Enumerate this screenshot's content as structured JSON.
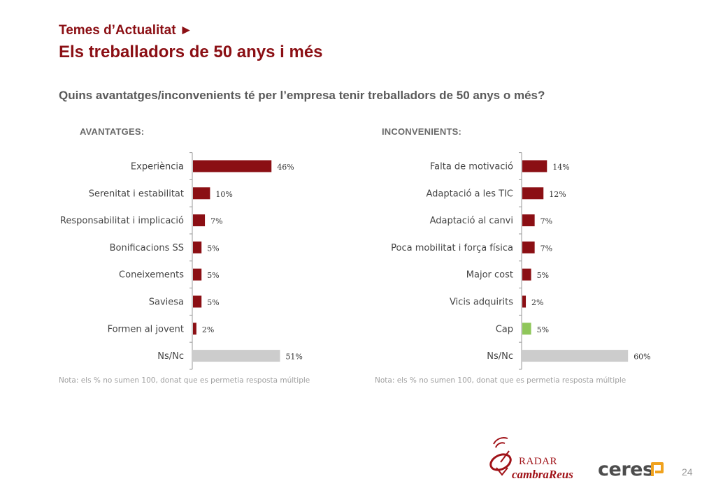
{
  "header": {
    "kicker": "Temes d’Actualitat ►",
    "title": "Els treballadors de 50 anys i més",
    "question": "Quins avantatges/inconvenients té per l’empresa tenir treballadors de 50 anys o més?"
  },
  "chart_data": [
    {
      "type": "bar",
      "orientation": "horizontal",
      "title": "AVANTATGES:",
      "categories": [
        "Experiència",
        "Serenitat i estabilitat",
        "Responsabilitat i implicació",
        "Bonificacions SS",
        "Coneixements",
        "Saviesa",
        "Formen al jovent",
        "Ns/Nc"
      ],
      "values": [
        46,
        10,
        7,
        5,
        5,
        5,
        2,
        51
      ],
      "value_labels": [
        "46%",
        "10%",
        "7%",
        "5%",
        "5%",
        "5%",
        "2%",
        "51%"
      ],
      "colors": [
        "#8b0f14",
        "#8b0f14",
        "#8b0f14",
        "#8b0f14",
        "#8b0f14",
        "#8b0f14",
        "#8b0f14",
        "#cccccc"
      ],
      "note": "Nota: els % no sumen 100, donat que es permetia resposta múltiple"
    },
    {
      "type": "bar",
      "orientation": "horizontal",
      "title": "INCONVENIENTS:",
      "categories": [
        "Falta de motivació",
        "Adaptació a les TIC",
        "Adaptació al canvi",
        "Poca mobilitat i força física",
        "Major cost",
        "Vicis adquirits",
        "Cap",
        "Ns/Nc"
      ],
      "values": [
        14,
        12,
        7,
        7,
        5,
        2,
        5,
        60
      ],
      "value_labels": [
        "14%",
        "12%",
        "7%",
        "7%",
        "5%",
        "2%",
        "5%",
        "60%"
      ],
      "colors": [
        "#8b0f14",
        "#8b0f14",
        "#8b0f14",
        "#8b0f14",
        "#8b0f14",
        "#8b0f14",
        "#8fc65a",
        "#cccccc"
      ],
      "note": "Nota: els % no sumen 100, donat que es permetia resposta múltiple"
    }
  ],
  "footer": {
    "radar_text": "RADAR",
    "cambra_text": "cambraReus",
    "ceres_text": "ceres",
    "page_number": "24"
  },
  "theme": {
    "accent": "#8b0f14",
    "axis": "#999999"
  }
}
